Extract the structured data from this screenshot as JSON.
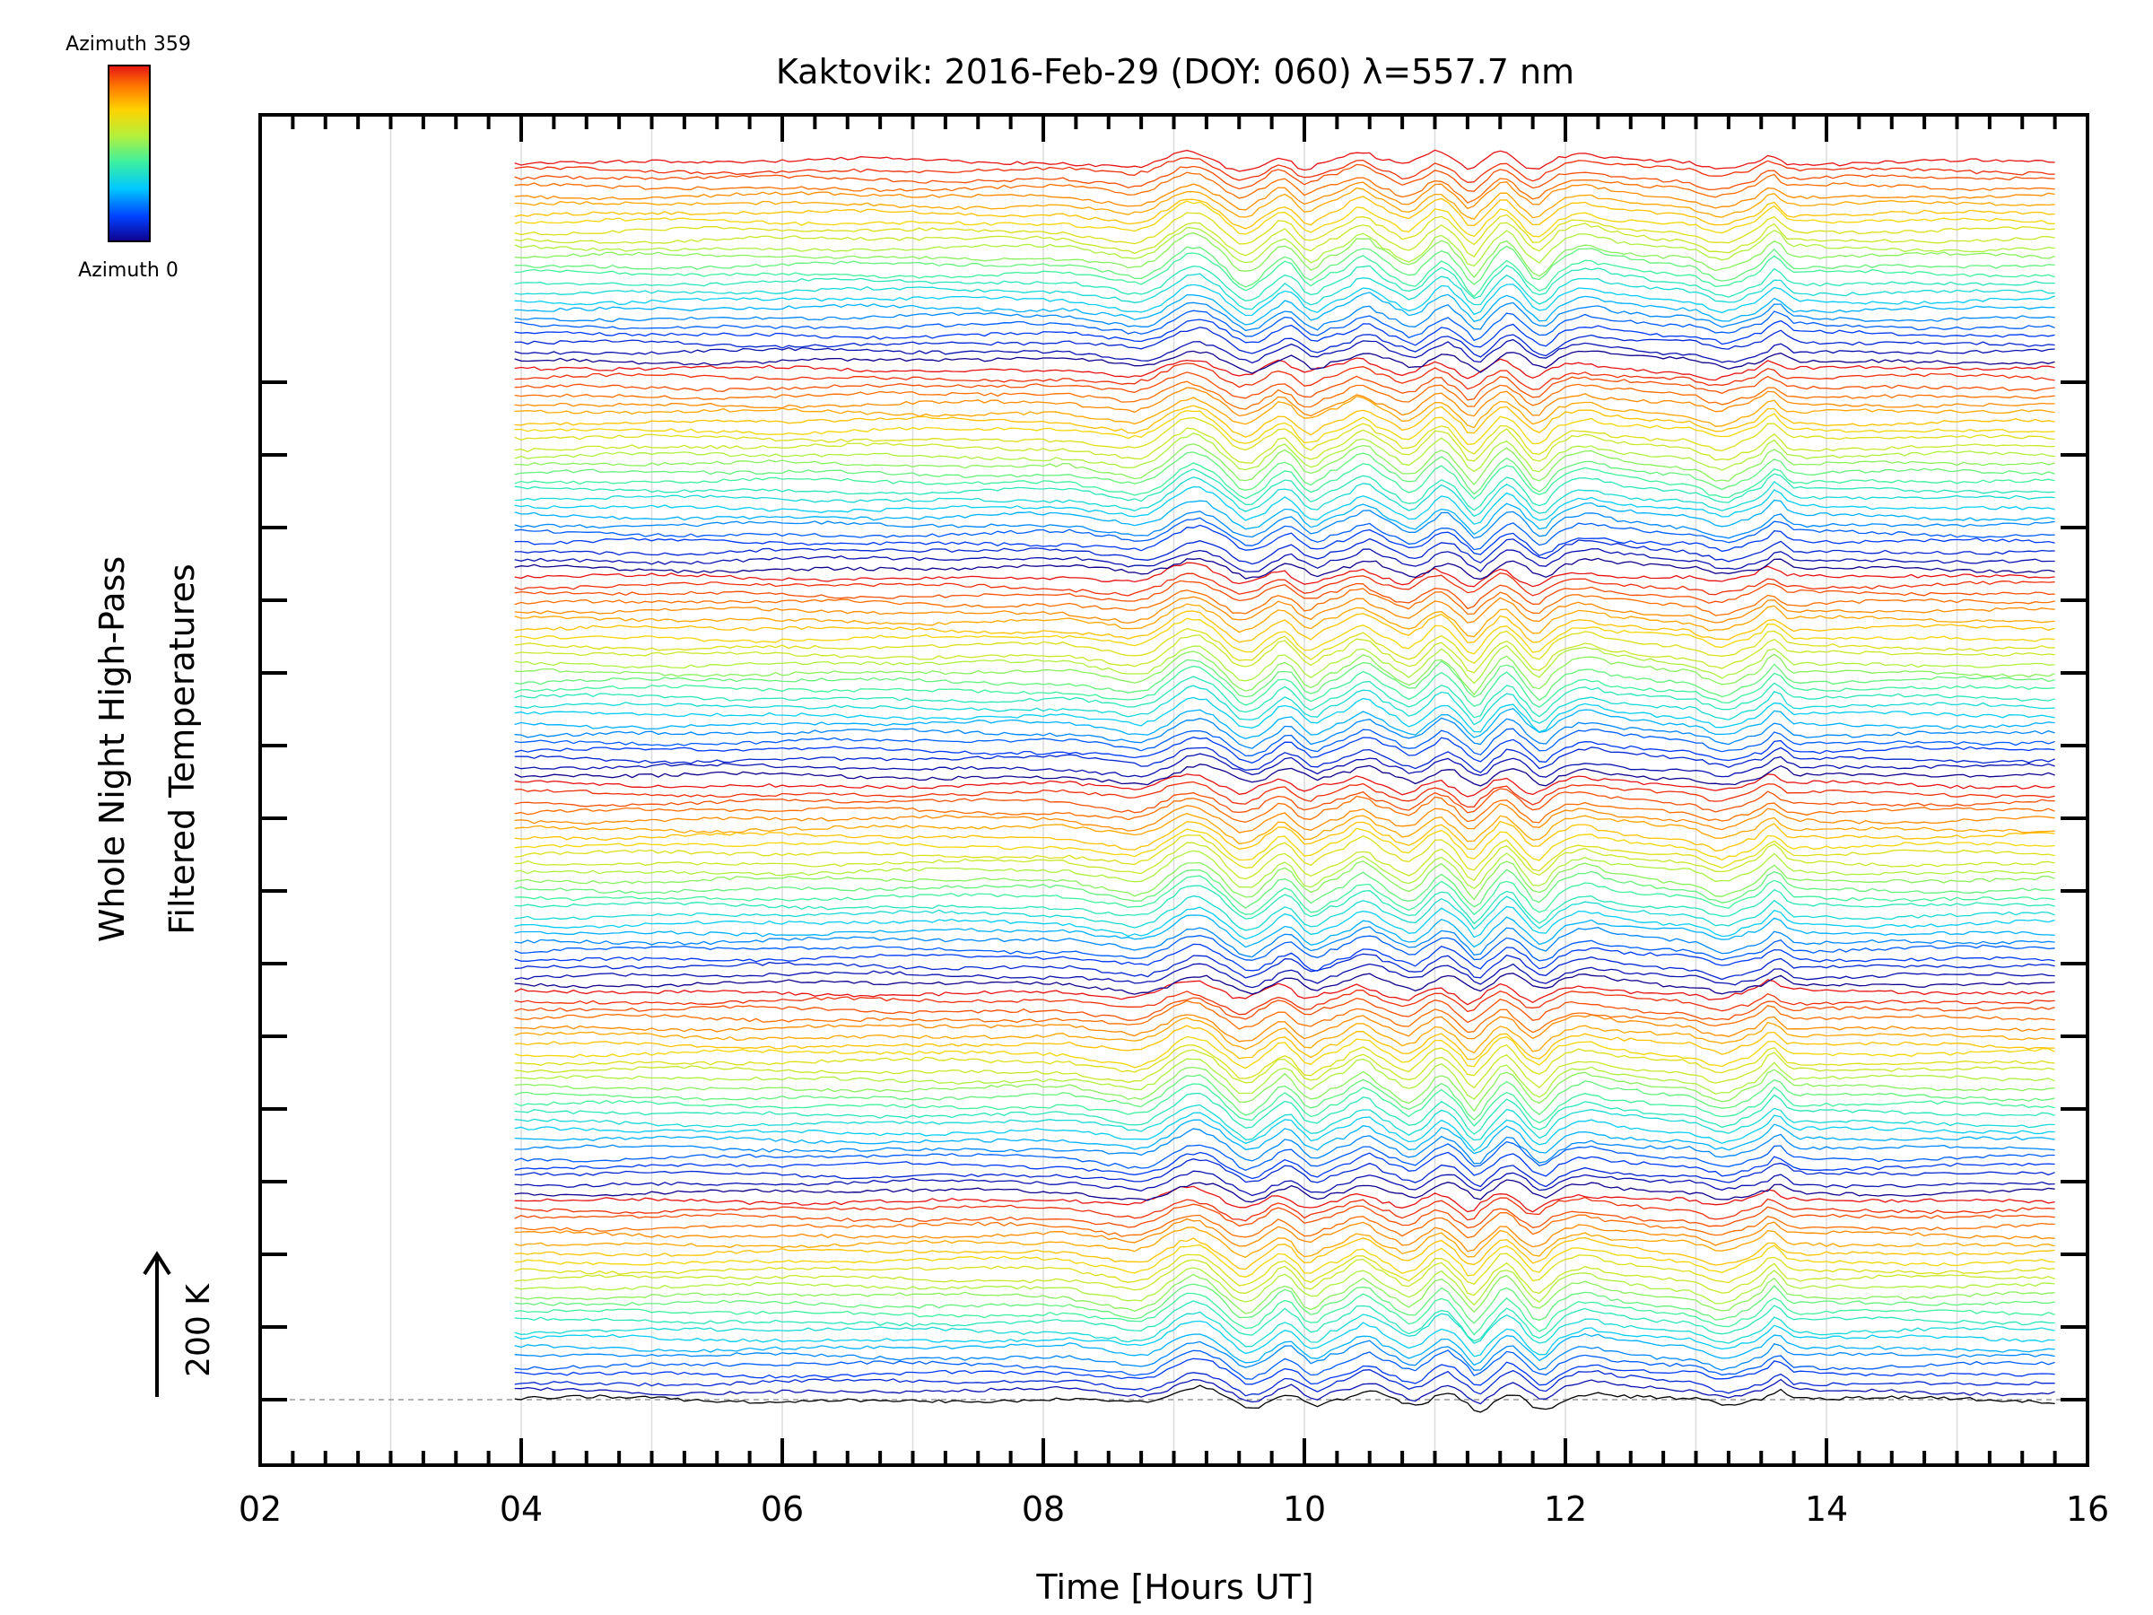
{
  "chart_data": {
    "type": "line",
    "title": "Kaktovik: 2016-Feb-29 (DOY: 060) λ=557.7 nm",
    "xlabel": "Time [Hours UT]",
    "ylabel": [
      "Whole Night High-Pass",
      "Filtered Temperatures"
    ],
    "xlim": [
      2,
      16
    ],
    "x_tick_labels": [
      "02",
      "04",
      "06",
      "08",
      "10",
      "12",
      "14",
      "16"
    ],
    "x_range_of_series": [
      3.95,
      15.75
    ],
    "y_offset_step_K": 100,
    "n_traces": 144,
    "n_azimuth_cycles": 6,
    "scale_bar_label": "200 K",
    "scale_bar_value_K": 200,
    "colorbar": {
      "top_label": "Azimuth 359",
      "bottom_label": "Azimuth 0",
      "range": [
        0,
        359
      ],
      "colors": [
        "#10008c",
        "#0040ff",
        "#00c8ff",
        "#3cf0a0",
        "#b4f03c",
        "#ffd200",
        "#ff7800",
        "#e61414"
      ]
    },
    "grid": true,
    "wave_event_hours": [
      8.8,
      13.7
    ],
    "legend": "colorbar top-left"
  }
}
